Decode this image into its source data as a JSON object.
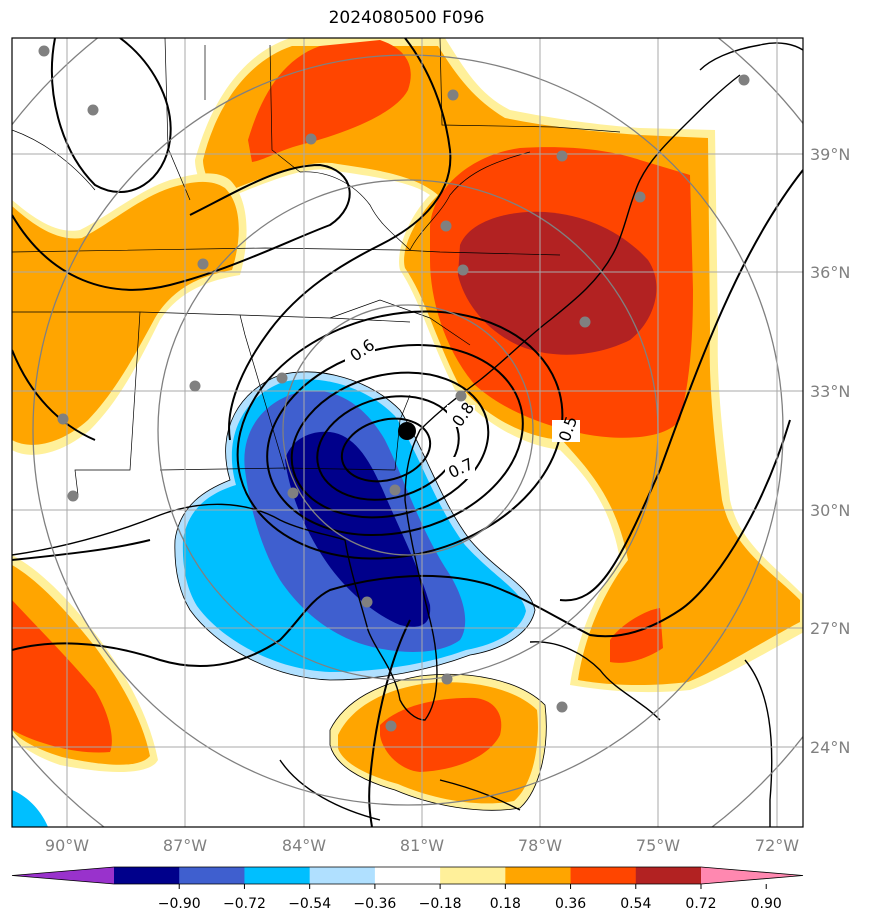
{
  "title": "2024080500 F096",
  "longitude_ticks": [
    "90°W",
    "87°W",
    "84°W",
    "81°W",
    "78°W",
    "75°W",
    "72°W"
  ],
  "latitude_ticks": [
    "39°N",
    "36°N",
    "33°N",
    "30°N",
    "27°N",
    "24°N"
  ],
  "contour_labels": [
    "0.6",
    "0.8",
    "0.5",
    "0.7"
  ],
  "colorbar": {
    "ticks": [
      "−0.90",
      "−0.72",
      "−0.54",
      "−0.36",
      "−0.18",
      "0.18",
      "0.36",
      "0.54",
      "0.72",
      "0.90"
    ],
    "colors": [
      "#9932cc",
      "#00008b",
      "#3f5fcf",
      "#00bfff",
      "#b0e0ff",
      "#ffffff",
      "#fff09a",
      "#ffa500",
      "#ff4500",
      "#b22222",
      "#ff88b0"
    ]
  },
  "colors": {
    "positive_1": "#fff09a",
    "positive_2": "#ffa500",
    "positive_3": "#ff4500",
    "positive_4": "#b22222",
    "negative_1": "#b0e0ff",
    "negative_2": "#00bfff",
    "negative_3": "#3f5fcf",
    "negative_4": "#00008b",
    "grid": "#a9a9a9",
    "range_rings": "#808080",
    "stations": "#808080"
  },
  "icons": [
    "center-marker",
    "station-dot"
  ]
}
